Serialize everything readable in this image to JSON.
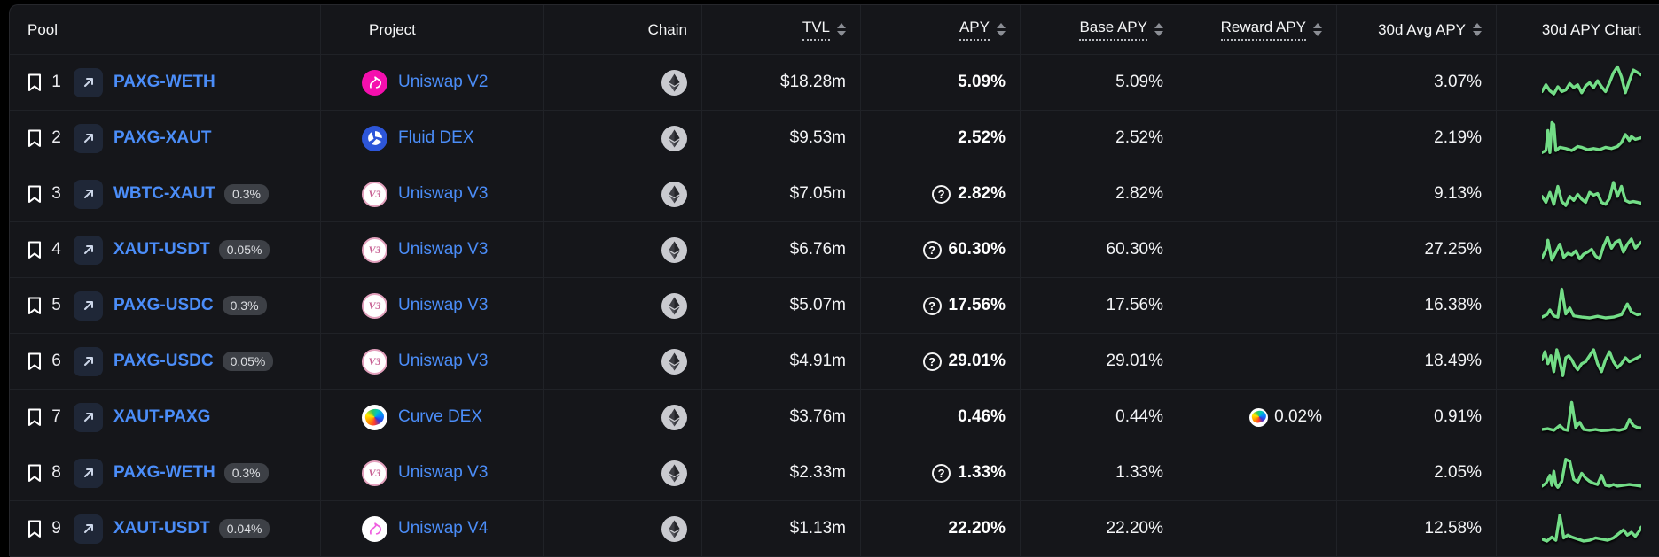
{
  "table": {
    "columns": {
      "pool": {
        "label": "Pool"
      },
      "project": {
        "label": "Project"
      },
      "chain": {
        "label": "Chain"
      },
      "tvl": {
        "label": "TVL"
      },
      "apy": {
        "label": "APY"
      },
      "base_apy": {
        "label": "Base APY"
      },
      "reward_apy": {
        "label": "Reward APY"
      },
      "avg_apy": {
        "label": "30d Avg APY"
      },
      "chart": {
        "label": "30d APY Chart"
      }
    },
    "rows": [
      {
        "rank": "1",
        "pool": "PAXG-WETH",
        "fee_badge": null,
        "project": "Uniswap V2",
        "project_icon": "uniswap-v2-icon",
        "icon_label": null,
        "chain": "Ethereum",
        "tvl": "$18.28m",
        "apy": "5.09%",
        "apy_has_tooltip": false,
        "base_apy": "5.09%",
        "reward_apy": null,
        "avg_apy_30d": "3.07%",
        "spark": [
          [
            0,
            72
          ],
          [
            4,
            55
          ],
          [
            8,
            70
          ],
          [
            12,
            78
          ],
          [
            16,
            60
          ],
          [
            20,
            72
          ],
          [
            24,
            68
          ],
          [
            28,
            52
          ],
          [
            32,
            62
          ],
          [
            36,
            55
          ],
          [
            40,
            75
          ],
          [
            44,
            58
          ],
          [
            48,
            50
          ],
          [
            52,
            62
          ],
          [
            56,
            45
          ],
          [
            60,
            60
          ],
          [
            64,
            72
          ],
          [
            68,
            50
          ],
          [
            72,
            25
          ],
          [
            76,
            10
          ],
          [
            80,
            35
          ],
          [
            84,
            75
          ],
          [
            88,
            45
          ],
          [
            92,
            18
          ],
          [
            100,
            30
          ]
        ]
      },
      {
        "rank": "2",
        "pool": "PAXG-XAUT",
        "fee_badge": null,
        "project": "Fluid DEX",
        "project_icon": "fluid-icon",
        "icon_label": null,
        "chain": "Ethereum",
        "tvl": "$9.53m",
        "apy": "2.52%",
        "apy_has_tooltip": false,
        "base_apy": "2.52%",
        "reward_apy": null,
        "avg_apy_30d": "2.19%",
        "spark": [
          [
            0,
            85
          ],
          [
            4,
            80
          ],
          [
            6,
            30
          ],
          [
            8,
            85
          ],
          [
            10,
            10
          ],
          [
            12,
            15
          ],
          [
            14,
            80
          ],
          [
            18,
            72
          ],
          [
            24,
            75
          ],
          [
            30,
            80
          ],
          [
            36,
            70
          ],
          [
            40,
            72
          ],
          [
            46,
            78
          ],
          [
            52,
            75
          ],
          [
            58,
            78
          ],
          [
            64,
            72
          ],
          [
            70,
            75
          ],
          [
            76,
            70
          ],
          [
            80,
            60
          ],
          [
            84,
            40
          ],
          [
            88,
            55
          ],
          [
            90,
            45
          ],
          [
            94,
            52
          ],
          [
            100,
            48
          ]
        ]
      },
      {
        "rank": "3",
        "pool": "WBTC-XAUT",
        "fee_badge": "0.3%",
        "project": "Uniswap V3",
        "project_icon": "uniswap-v3-icon",
        "icon_label": "V3",
        "chain": "Ethereum",
        "tvl": "$7.05m",
        "apy": "2.82%",
        "apy_has_tooltip": true,
        "base_apy": "2.82%",
        "reward_apy": null,
        "avg_apy_30d": "9.13%",
        "spark": [
          [
            0,
            55
          ],
          [
            4,
            70
          ],
          [
            8,
            45
          ],
          [
            12,
            75
          ],
          [
            16,
            30
          ],
          [
            20,
            68
          ],
          [
            24,
            78
          ],
          [
            28,
            55
          ],
          [
            32,
            65
          ],
          [
            36,
            50
          ],
          [
            40,
            62
          ],
          [
            44,
            70
          ],
          [
            48,
            45
          ],
          [
            52,
            52
          ],
          [
            56,
            48
          ],
          [
            60,
            70
          ],
          [
            64,
            75
          ],
          [
            68,
            60
          ],
          [
            72,
            20
          ],
          [
            76,
            55
          ],
          [
            80,
            30
          ],
          [
            84,
            65
          ],
          [
            88,
            70
          ],
          [
            92,
            68
          ],
          [
            100,
            72
          ]
        ]
      },
      {
        "rank": "4",
        "pool": "XAUT-USDT",
        "fee_badge": "0.05%",
        "project": "Uniswap V3",
        "project_icon": "uniswap-v3-icon",
        "icon_label": "V3",
        "chain": "Ethereum",
        "tvl": "$6.76m",
        "apy": "60.30%",
        "apy_has_tooltip": true,
        "base_apy": "60.30%",
        "reward_apy": null,
        "avg_apy_30d": "27.25%",
        "spark": [
          [
            0,
            70
          ],
          [
            4,
            50
          ],
          [
            6,
            25
          ],
          [
            10,
            75
          ],
          [
            14,
            55
          ],
          [
            18,
            35
          ],
          [
            22,
            68
          ],
          [
            26,
            58
          ],
          [
            30,
            62
          ],
          [
            34,
            52
          ],
          [
            38,
            72
          ],
          [
            42,
            60
          ],
          [
            46,
            55
          ],
          [
            50,
            48
          ],
          [
            54,
            65
          ],
          [
            58,
            72
          ],
          [
            62,
            40
          ],
          [
            66,
            18
          ],
          [
            70,
            45
          ],
          [
            74,
            30
          ],
          [
            78,
            25
          ],
          [
            82,
            55
          ],
          [
            86,
            35
          ],
          [
            90,
            22
          ],
          [
            94,
            45
          ],
          [
            100,
            30
          ]
        ]
      },
      {
        "rank": "5",
        "pool": "PAXG-USDC",
        "fee_badge": "0.3%",
        "project": "Uniswap V3",
        "project_icon": "uniswap-v3-icon",
        "icon_label": "V3",
        "chain": "Ethereum",
        "tvl": "$5.07m",
        "apy": "17.56%",
        "apy_has_tooltip": true,
        "base_apy": "17.56%",
        "reward_apy": null,
        "avg_apy_30d": "16.38%",
        "spark": [
          [
            0,
            78
          ],
          [
            5,
            72
          ],
          [
            8,
            60
          ],
          [
            12,
            75
          ],
          [
            16,
            78
          ],
          [
            20,
            8
          ],
          [
            24,
            70
          ],
          [
            28,
            55
          ],
          [
            32,
            75
          ],
          [
            40,
            78
          ],
          [
            48,
            80
          ],
          [
            56,
            76
          ],
          [
            64,
            80
          ],
          [
            72,
            78
          ],
          [
            80,
            72
          ],
          [
            86,
            45
          ],
          [
            90,
            65
          ],
          [
            96,
            72
          ],
          [
            100,
            70
          ]
        ]
      },
      {
        "rank": "6",
        "pool": "PAXG-USDC",
        "fee_badge": "0.05%",
        "project": "Uniswap V3",
        "project_icon": "uniswap-v3-icon",
        "icon_label": "V3",
        "chain": "Ethereum",
        "tvl": "$4.91m",
        "apy": "29.01%",
        "apy_has_tooltip": true,
        "base_apy": "29.01%",
        "reward_apy": null,
        "avg_apy_30d": "18.49%",
        "spark": [
          [
            0,
            45
          ],
          [
            3,
            25
          ],
          [
            6,
            55
          ],
          [
            9,
            35
          ],
          [
            12,
            75
          ],
          [
            15,
            20
          ],
          [
            18,
            50
          ],
          [
            21,
            85
          ],
          [
            24,
            40
          ],
          [
            27,
            35
          ],
          [
            30,
            45
          ],
          [
            33,
            60
          ],
          [
            36,
            70
          ],
          [
            40,
            55
          ],
          [
            44,
            50
          ],
          [
            48,
            35
          ],
          [
            52,
            20
          ],
          [
            56,
            55
          ],
          [
            60,
            75
          ],
          [
            64,
            45
          ],
          [
            68,
            25
          ],
          [
            72,
            50
          ],
          [
            76,
            65
          ],
          [
            80,
            55
          ],
          [
            84,
            40
          ],
          [
            88,
            50
          ],
          [
            92,
            45
          ],
          [
            100,
            35
          ]
        ]
      },
      {
        "rank": "7",
        "pool": "XAUT-PAXG",
        "fee_badge": null,
        "project": "Curve DEX",
        "project_icon": "curve-icon",
        "icon_label": null,
        "chain": "Ethereum",
        "tvl": "$3.76m",
        "apy": "0.46%",
        "apy_has_tooltip": false,
        "base_apy": "0.44%",
        "reward_apy": "0.02%",
        "avg_apy_30d": "0.91%",
        "spark": [
          [
            0,
            80
          ],
          [
            6,
            78
          ],
          [
            12,
            82
          ],
          [
            18,
            70
          ],
          [
            22,
            80
          ],
          [
            26,
            82
          ],
          [
            30,
            12
          ],
          [
            34,
            75
          ],
          [
            38,
            62
          ],
          [
            42,
            80
          ],
          [
            48,
            82
          ],
          [
            54,
            80
          ],
          [
            60,
            83
          ],
          [
            66,
            82
          ],
          [
            72,
            80
          ],
          [
            78,
            82
          ],
          [
            84,
            78
          ],
          [
            88,
            55
          ],
          [
            92,
            70
          ],
          [
            96,
            75
          ],
          [
            100,
            76
          ]
        ]
      },
      {
        "rank": "8",
        "pool": "PAXG-WETH",
        "fee_badge": "0.3%",
        "project": "Uniswap V3",
        "project_icon": "uniswap-v3-icon",
        "icon_label": "V3",
        "chain": "Ethereum",
        "tvl": "$2.33m",
        "apy": "1.33%",
        "apy_has_tooltip": true,
        "base_apy": "1.33%",
        "reward_apy": null,
        "avg_apy_30d": "2.05%",
        "spark": [
          [
            0,
            82
          ],
          [
            4,
            75
          ],
          [
            8,
            55
          ],
          [
            10,
            80
          ],
          [
            12,
            45
          ],
          [
            14,
            78
          ],
          [
            16,
            85
          ],
          [
            20,
            70
          ],
          [
            24,
            15
          ],
          [
            28,
            20
          ],
          [
            32,
            65
          ],
          [
            36,
            72
          ],
          [
            40,
            50
          ],
          [
            44,
            62
          ],
          [
            48,
            70
          ],
          [
            52,
            75
          ],
          [
            56,
            78
          ],
          [
            60,
            55
          ],
          [
            64,
            80
          ],
          [
            68,
            82
          ],
          [
            72,
            78
          ],
          [
            76,
            82
          ],
          [
            82,
            80
          ],
          [
            88,
            78
          ],
          [
            94,
            80
          ],
          [
            100,
            82
          ]
        ]
      },
      {
        "rank": "9",
        "pool": "XAUT-USDT",
        "fee_badge": "0.04%",
        "project": "Uniswap V4",
        "project_icon": "uniswap-v4-icon",
        "icon_label": null,
        "chain": "Ethereum",
        "tvl": "$1.13m",
        "apy": "22.20%",
        "apy_has_tooltip": false,
        "base_apy": "22.20%",
        "reward_apy": null,
        "avg_apy_30d": "12.58%",
        "spark": [
          [
            0,
            75
          ],
          [
            5,
            80
          ],
          [
            10,
            70
          ],
          [
            14,
            78
          ],
          [
            18,
            15
          ],
          [
            22,
            72
          ],
          [
            26,
            65
          ],
          [
            30,
            70
          ],
          [
            36,
            75
          ],
          [
            42,
            80
          ],
          [
            48,
            78
          ],
          [
            54,
            72
          ],
          [
            60,
            75
          ],
          [
            66,
            78
          ],
          [
            72,
            72
          ],
          [
            78,
            60
          ],
          [
            82,
            52
          ],
          [
            86,
            65
          ],
          [
            90,
            58
          ],
          [
            94,
            68
          ],
          [
            98,
            55
          ],
          [
            100,
            45
          ]
        ]
      }
    ]
  },
  "colors": {
    "page_bg": "#000000",
    "table_bg": "#15161a",
    "link_blue": "#4b8df8",
    "spark_green": "#73dd87",
    "divider": "#202227"
  }
}
